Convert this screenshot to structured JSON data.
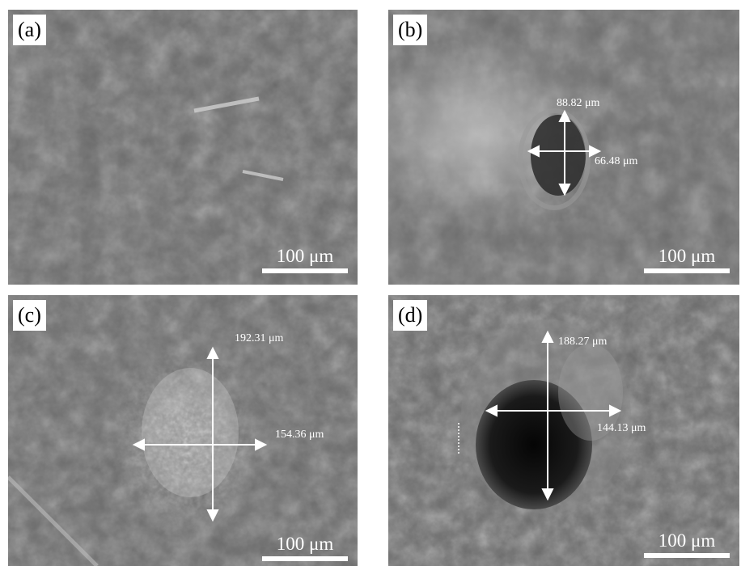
{
  "panels": [
    {
      "label": "(a)",
      "scale": "100 μm",
      "measurements": []
    },
    {
      "label": "(b)",
      "scale": "100 μm",
      "measurements": [
        "88.82 μm",
        "66.48 μm"
      ]
    },
    {
      "label": "(c)",
      "scale": "100 μm",
      "measurements": [
        "192.31 μm",
        "154.36 μm"
      ]
    },
    {
      "label": "(d)",
      "scale": "100 μm",
      "measurements": [
        "188.27 μm",
        "144.13 μm"
      ]
    }
  ],
  "colors": {
    "annotation": "#ffffff",
    "background": "#ffffff",
    "sem_tone": "#6e6e6e"
  }
}
